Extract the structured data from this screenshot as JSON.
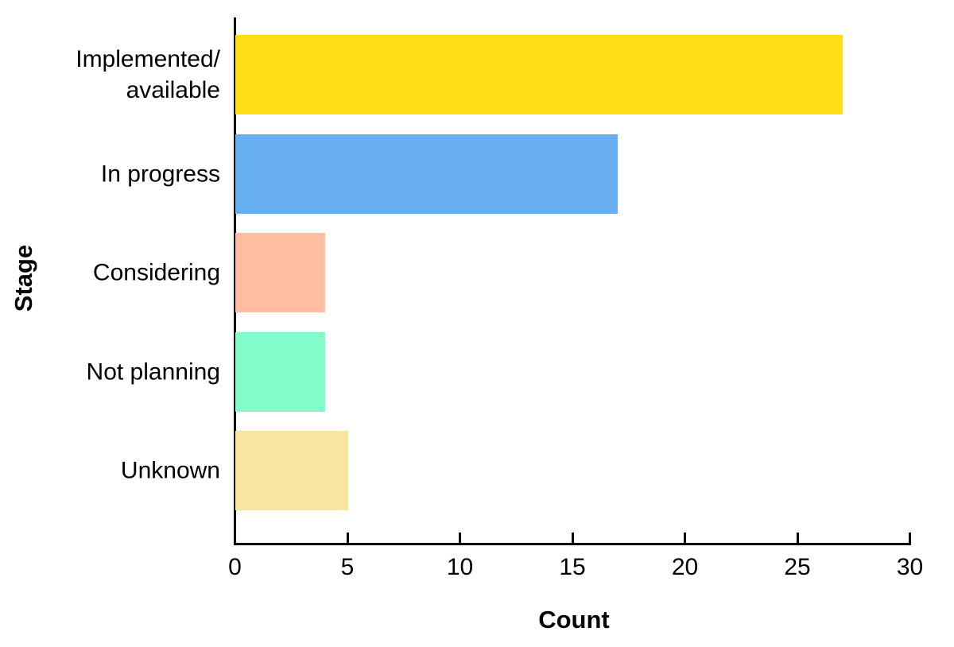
{
  "chart_data": {
    "type": "bar",
    "orientation": "horizontal",
    "categories": [
      "Implemented/\navailable",
      "In progress",
      "Considering",
      "Not planning",
      "Unknown"
    ],
    "values": [
      27,
      17,
      4,
      4,
      5
    ],
    "bar_colors": [
      "#FFDE17",
      "#67AFEF",
      "#FFBDA1",
      "#83FCCB",
      "#FAE5A0"
    ],
    "xlabel": "Count",
    "ylabel": "Stage",
    "xlim": [
      0,
      30
    ],
    "xticks": [
      0,
      5,
      10,
      15,
      20,
      25,
      30
    ],
    "axis_color": "#000000",
    "text_color": "#000000",
    "background_color": "#FFFFFF",
    "grid": "off",
    "legend": "none",
    "title": ""
  }
}
